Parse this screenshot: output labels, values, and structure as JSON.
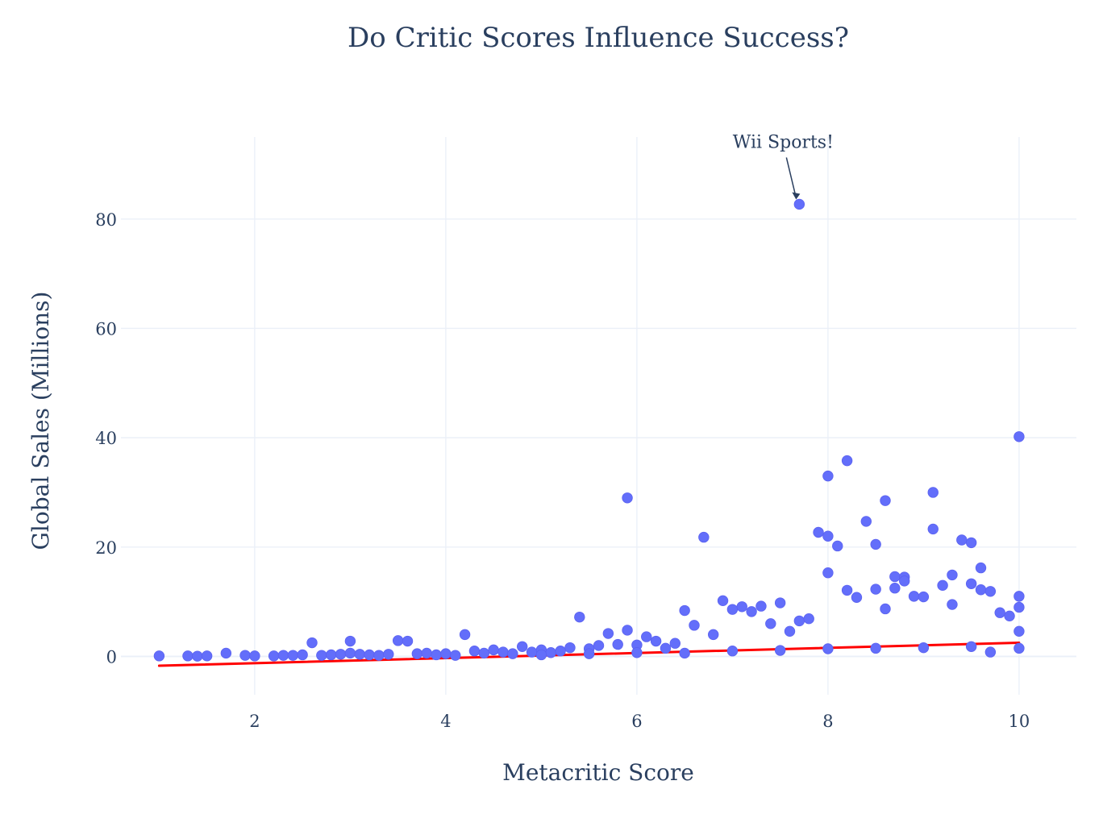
{
  "chart_data": {
    "type": "scatter",
    "title": "Do Critic Scores Influence Success?",
    "xlabel": "Metacritic Score",
    "ylabel": "Global Sales (Millions)",
    "xlim": [
      0.6,
      10.6
    ],
    "ylim": [
      -7,
      95
    ],
    "x_ticks": [
      2,
      4,
      6,
      8,
      10
    ],
    "y_ticks": [
      0,
      20,
      40,
      60,
      80
    ],
    "x_tick_labels": [
      "2",
      "4",
      "6",
      "8",
      "10"
    ],
    "y_tick_labels": [
      "0",
      "20",
      "40",
      "60",
      "80"
    ],
    "grid": true,
    "legend": "none",
    "colors": {
      "points": "#636efa",
      "trendline": "#ff0000",
      "grid": "#ebf0f8",
      "text": "#2a3f5f"
    },
    "series": [
      {
        "type": "scatter",
        "points": [
          [
            1.0,
            0.1
          ],
          [
            1.3,
            0.1
          ],
          [
            1.4,
            0.05
          ],
          [
            1.5,
            0.1
          ],
          [
            1.7,
            0.6
          ],
          [
            1.9,
            0.2
          ],
          [
            2.0,
            0.1
          ],
          [
            2.2,
            0.1
          ],
          [
            2.3,
            0.2
          ],
          [
            2.4,
            0.2
          ],
          [
            2.5,
            0.3
          ],
          [
            2.6,
            2.5
          ],
          [
            2.7,
            0.2
          ],
          [
            2.8,
            0.3
          ],
          [
            2.9,
            0.4
          ],
          [
            3.0,
            2.8
          ],
          [
            3.0,
            0.6
          ],
          [
            3.1,
            0.4
          ],
          [
            3.2,
            0.3
          ],
          [
            3.3,
            0.2
          ],
          [
            3.4,
            0.4
          ],
          [
            3.5,
            2.9
          ],
          [
            3.6,
            2.8
          ],
          [
            3.7,
            0.5
          ],
          [
            3.8,
            0.6
          ],
          [
            3.9,
            0.3
          ],
          [
            4.0,
            0.5
          ],
          [
            4.1,
            0.2
          ],
          [
            4.2,
            4.0
          ],
          [
            4.3,
            1.0
          ],
          [
            4.4,
            0.6
          ],
          [
            4.5,
            1.2
          ],
          [
            4.6,
            0.8
          ],
          [
            4.7,
            0.5
          ],
          [
            4.8,
            1.8
          ],
          [
            4.9,
            0.8
          ],
          [
            5.0,
            1.2
          ],
          [
            5.1,
            0.7
          ],
          [
            5.2,
            1.0
          ],
          [
            5.3,
            1.6
          ],
          [
            5.4,
            7.2
          ],
          [
            5.5,
            1.4
          ],
          [
            5.6,
            2.0
          ],
          [
            5.7,
            4.2
          ],
          [
            5.8,
            2.2
          ],
          [
            5.9,
            29.0
          ],
          [
            5.9,
            4.8
          ],
          [
            6.0,
            2.1
          ],
          [
            6.1,
            3.6
          ],
          [
            6.2,
            2.8
          ],
          [
            6.3,
            1.5
          ],
          [
            6.4,
            2.4
          ],
          [
            6.5,
            8.4
          ],
          [
            6.6,
            5.7
          ],
          [
            6.7,
            21.8
          ],
          [
            6.8,
            4.0
          ],
          [
            6.9,
            10.2
          ],
          [
            7.0,
            8.6
          ],
          [
            7.1,
            9.1
          ],
          [
            7.2,
            8.2
          ],
          [
            7.3,
            9.2
          ],
          [
            7.4,
            6.0
          ],
          [
            7.5,
            9.8
          ],
          [
            7.6,
            4.6
          ],
          [
            7.7,
            82.7
          ],
          [
            7.7,
            6.5
          ],
          [
            7.8,
            6.9
          ],
          [
            7.9,
            22.7
          ],
          [
            8.0,
            33.0
          ],
          [
            8.0,
            22.0
          ],
          [
            8.0,
            15.3
          ],
          [
            8.1,
            20.2
          ],
          [
            8.2,
            35.8
          ],
          [
            8.2,
            12.1
          ],
          [
            8.3,
            10.8
          ],
          [
            8.4,
            24.7
          ],
          [
            8.5,
            20.5
          ],
          [
            8.5,
            12.3
          ],
          [
            8.6,
            28.5
          ],
          [
            8.6,
            8.7
          ],
          [
            8.7,
            14.6
          ],
          [
            8.7,
            12.5
          ],
          [
            8.8,
            14.5
          ],
          [
            8.8,
            13.8
          ],
          [
            8.9,
            11.0
          ],
          [
            9.0,
            10.9
          ],
          [
            9.1,
            30.0
          ],
          [
            9.1,
            23.3
          ],
          [
            9.2,
            13.0
          ],
          [
            9.3,
            14.9
          ],
          [
            9.3,
            9.5
          ],
          [
            9.4,
            21.3
          ],
          [
            9.5,
            20.8
          ],
          [
            9.5,
            13.3
          ],
          [
            9.6,
            16.2
          ],
          [
            9.6,
            12.2
          ],
          [
            9.7,
            11.9
          ],
          [
            9.8,
            8.0
          ],
          [
            9.9,
            7.4
          ],
          [
            10.0,
            40.2
          ],
          [
            10.0,
            11.0
          ],
          [
            10.0,
            9.0
          ],
          [
            10.0,
            4.6
          ],
          [
            10.0,
            1.5
          ],
          [
            5.0,
            0.3
          ],
          [
            5.5,
            0.5
          ],
          [
            6.0,
            0.7
          ],
          [
            6.5,
            0.6
          ],
          [
            7.0,
            1.0
          ],
          [
            7.5,
            1.1
          ],
          [
            8.0,
            1.4
          ],
          [
            8.5,
            1.5
          ],
          [
            9.0,
            1.6
          ],
          [
            9.5,
            1.8
          ],
          [
            9.7,
            0.8
          ]
        ]
      }
    ],
    "trendline": {
      "x": [
        1.0,
        10.0
      ],
      "y": [
        -1.7,
        2.5
      ]
    },
    "annotations": [
      {
        "text": "Wii Sports!",
        "x": 7.7,
        "y": 82.7
      }
    ]
  }
}
